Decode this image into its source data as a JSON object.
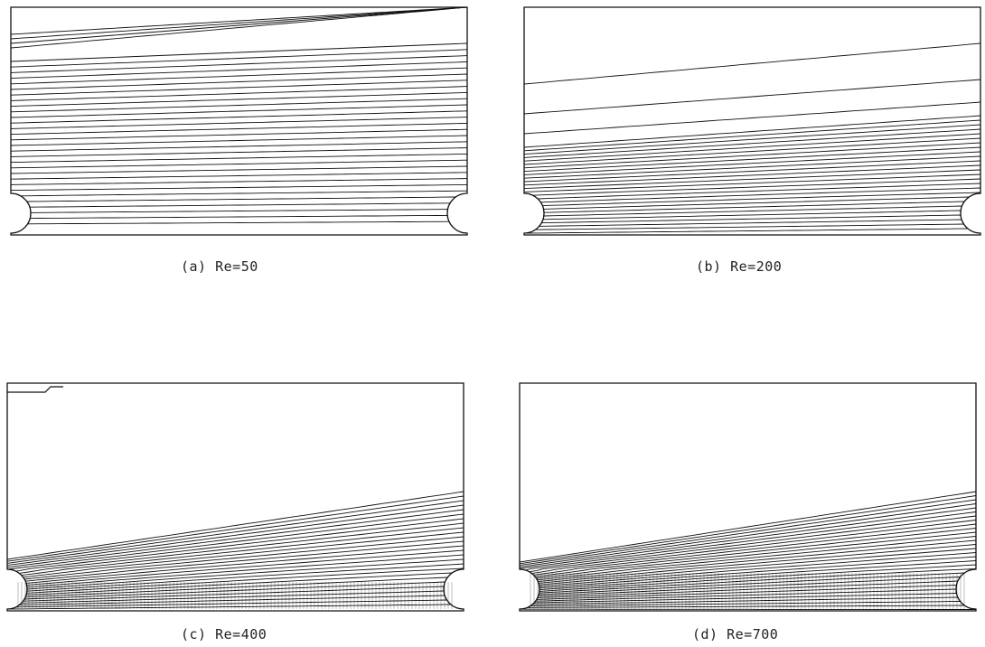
{
  "figure": {
    "panels": [
      {
        "id": "a",
        "caption": "(a) Re=50"
      },
      {
        "id": "b",
        "caption": "(b) Re=200"
      },
      {
        "id": "c",
        "caption": "(c) Re=400"
      },
      {
        "id": "d",
        "caption": "(d) Re=700"
      }
    ]
  },
  "colors": {
    "line": "#111111",
    "background": "#ffffff"
  }
}
